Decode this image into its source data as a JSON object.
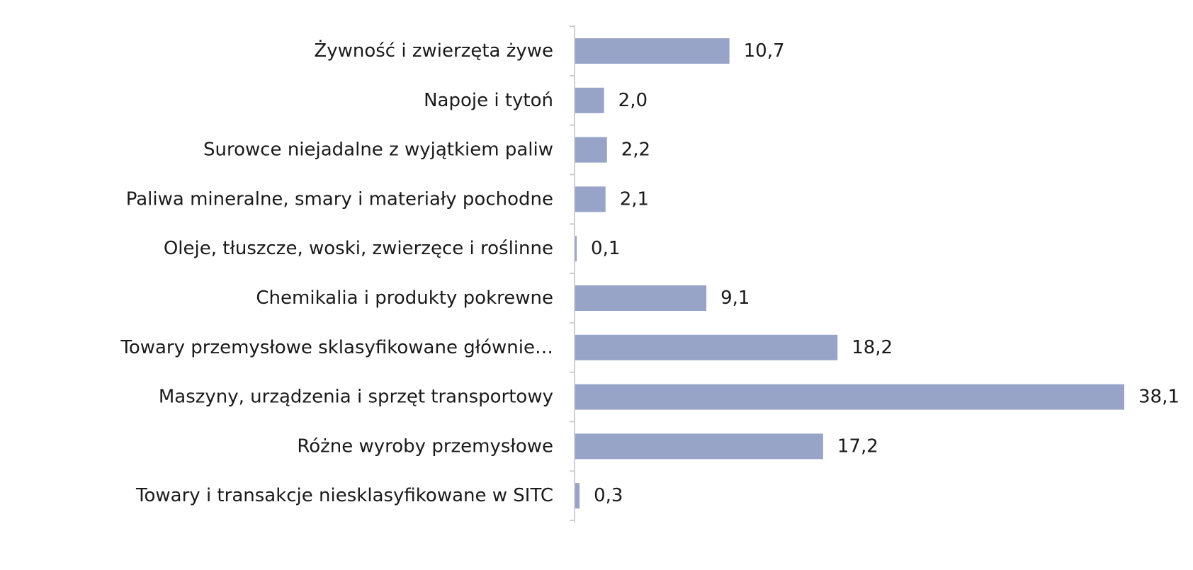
{
  "colors": {
    "bar": "#97a4c8",
    "axis": "#cfcfcf",
    "text": "#1a1a1a",
    "background": "#ffffff"
  },
  "chart_data": {
    "type": "bar",
    "orientation": "horizontal",
    "categories": [
      "Żywność i zwierzęta żywe",
      "Napoje i tytoń",
      "Surowce niejadalne z wyjątkiem paliw",
      "Paliwa mineralne, smary i materiały  pochodne",
      "Oleje, tłuszcze, woski, zwierzęce i roślinne",
      "Chemikalia i produkty pokrewne",
      "Towary przemysłowe sklasyfikowane głównie…",
      "Maszyny, urządzenia i sprzęt transportowy",
      "Różne wyroby przemysłowe",
      "Towary i transakcje niesklasyfikowane w SITC"
    ],
    "values": [
      10.7,
      2.0,
      2.2,
      2.1,
      0.1,
      9.1,
      18.2,
      38.1,
      17.2,
      0.3
    ],
    "data_labels": [
      "10,7",
      "2,0",
      "2,2",
      "2,1",
      "0,1",
      "9,1",
      "18,2",
      "38,1",
      "17,2",
      "0,3"
    ],
    "title": "",
    "xlabel": "",
    "ylabel": "",
    "xlim": [
      0,
      38.1
    ],
    "grid": false,
    "legend": "none"
  }
}
